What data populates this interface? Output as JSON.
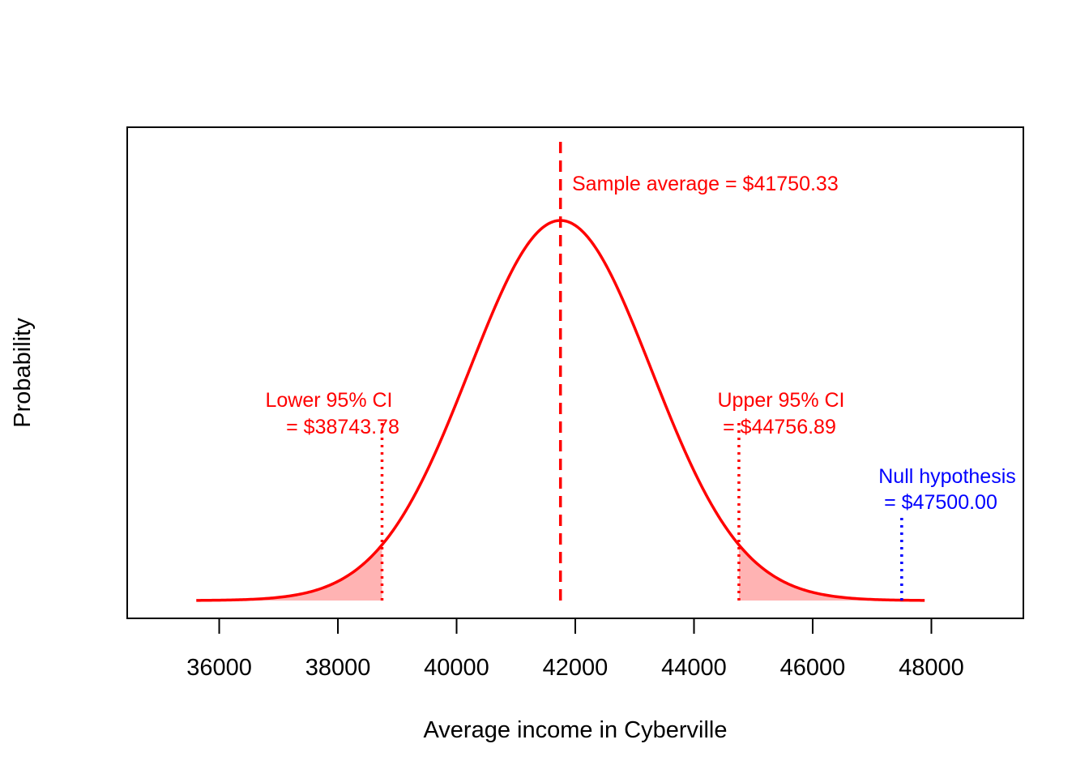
{
  "colors": {
    "curve": "#ff0000",
    "shade": "#ffb3b3",
    "null_line": "#0000ff",
    "axis": "#000000"
  },
  "chart_data": {
    "type": "line",
    "title": "",
    "xlabel": "Average income in Cyberville",
    "ylabel": "Probability",
    "xlim": [
      34450,
      49550
    ],
    "x_ticks": [
      36000,
      38000,
      40000,
      42000,
      44000,
      46000,
      48000
    ],
    "x_tick_labels": [
      "36000",
      "38000",
      "40000",
      "42000",
      "44000",
      "46000",
      "48000"
    ],
    "y_ticks_shown": false,
    "grid": false,
    "series": [
      {
        "kind": "normal_density",
        "mean": 41750.33,
        "sd": 1534,
        "x_range": [
          35614,
          47887
        ],
        "peak_relative_height": 1.0
      }
    ],
    "shaded_regions": [
      {
        "from": 35614,
        "to": 38743.78
      },
      {
        "from": 44756.89,
        "to": 47887
      }
    ],
    "vlines": [
      {
        "x": 41750.33,
        "style": "dashed",
        "color": "red",
        "height_fraction": 1.0
      },
      {
        "x": 38743.78,
        "style": "dotted",
        "color": "red",
        "height_fraction": 0.39
      },
      {
        "x": 44756.89,
        "style": "dotted",
        "color": "red",
        "height_fraction": 0.39
      },
      {
        "x": 47500.0,
        "style": "dotted",
        "color": "blue",
        "height_fraction": 0.18
      }
    ],
    "annotations": {
      "sample_average": "Sample average = $41750.33",
      "lower_ci_line1": "Lower 95% CI",
      "lower_ci_line2": "= $38743.78",
      "upper_ci_line1": "Upper 95% CI",
      "upper_ci_line2": "= $44756.89",
      "null_line1": "Null hypothesis",
      "null_line2": "= $47500.00"
    }
  }
}
